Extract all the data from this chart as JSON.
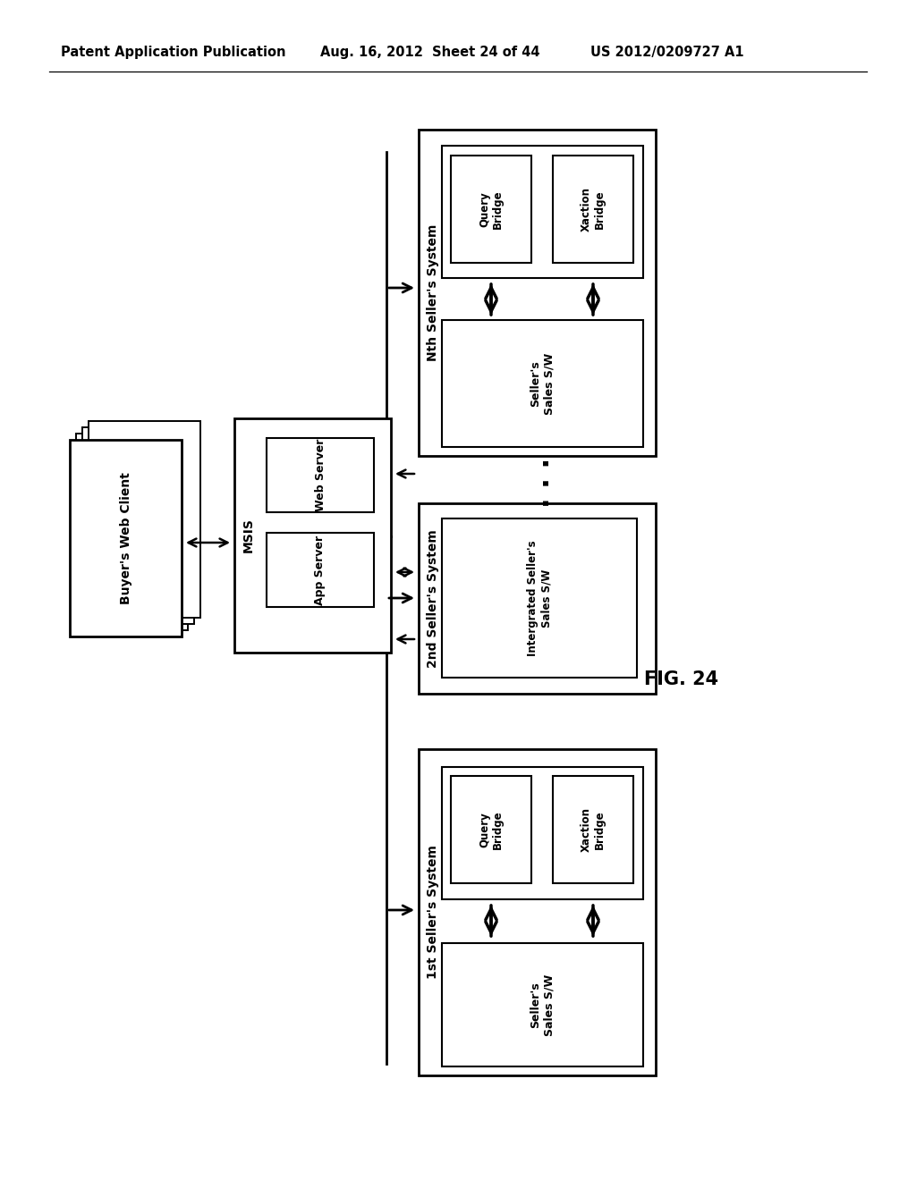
{
  "bg_color": "#ffffff",
  "header_left": "Patent Application Publication",
  "header_mid": "Aug. 16, 2012  Sheet 24 of 44",
  "header_right": "US 2012/0209727 A1",
  "fig_label": "FIG. 24",
  "header_fontsize": 10.5,
  "fig_label_fontsize": 15
}
